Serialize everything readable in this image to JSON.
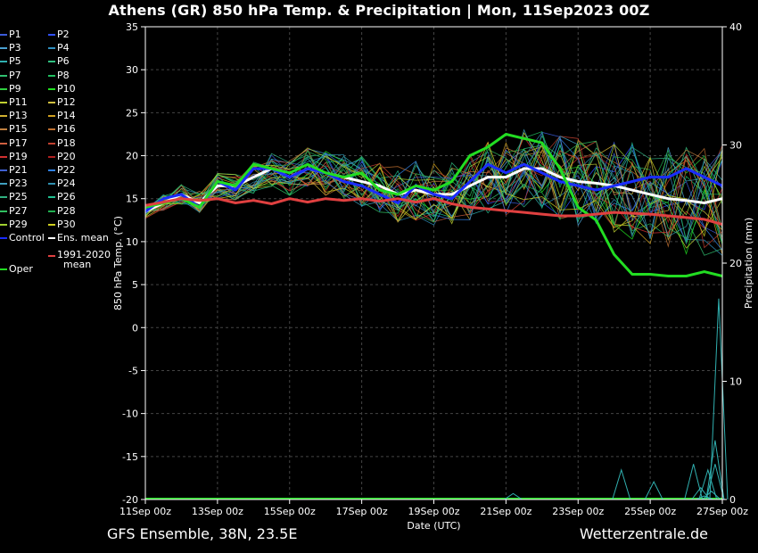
{
  "header": {
    "title": "Athens  (GR)  850 hPa Temp. & Precipitation | Mon, 11Sep2023 00Z"
  },
  "footer": {
    "left": "GFS Ensemble, 38N, 23.5E",
    "right": "Wetterzentrale.de"
  },
  "legend": [
    {
      "label": "P1",
      "color": "#3b5bd9"
    },
    {
      "label": "P2",
      "color": "#3050ff"
    },
    {
      "label": "P3",
      "color": "#4aa0d0"
    },
    {
      "label": "P4",
      "color": "#3090c0"
    },
    {
      "label": "P5",
      "color": "#30b0b0"
    },
    {
      "label": "P6",
      "color": "#30c080"
    },
    {
      "label": "P7",
      "color": "#30c070"
    },
    {
      "label": "P8",
      "color": "#20c060"
    },
    {
      "label": "P9",
      "color": "#30d040"
    },
    {
      "label": "P10",
      "color": "#20e020"
    },
    {
      "label": "P11",
      "color": "#c0d030"
    },
    {
      "label": "P12",
      "color": "#d0c040"
    },
    {
      "label": "P13",
      "color": "#d0b030"
    },
    {
      "label": "P14",
      "color": "#d0a020"
    },
    {
      "label": "P15",
      "color": "#c08040"
    },
    {
      "label": "P16",
      "color": "#c07030"
    },
    {
      "label": "P17",
      "color": "#d06040"
    },
    {
      "label": "P18",
      "color": "#c04030"
    },
    {
      "label": "P19",
      "color": "#d03030"
    },
    {
      "label": "P20",
      "color": "#b02020"
    },
    {
      "label": "P21",
      "color": "#4060d0"
    },
    {
      "label": "P22",
      "color": "#3080e0"
    },
    {
      "label": "P23",
      "color": "#40a0c0"
    },
    {
      "label": "P24",
      "color": "#3090b0"
    },
    {
      "label": "P25",
      "color": "#30b080"
    },
    {
      "label": "P26",
      "color": "#20c090"
    },
    {
      "label": "P27",
      "color": "#30c060"
    },
    {
      "label": "P28",
      "color": "#20b050"
    },
    {
      "label": "P29",
      "color": "#a0d030"
    },
    {
      "label": "P30",
      "color": "#d0d020"
    },
    {
      "label": "Control",
      "color": "#1a2cff"
    },
    {
      "label": "Ens. mean",
      "color": "#ffffff"
    },
    {
      "label": "Oper",
      "color": "#22dd22"
    },
    {
      "label": "1991-2020 mean",
      "color": "#e04040"
    }
  ],
  "chart_data": {
    "type": "line",
    "title": "Athens  (GR)  850 hPa Temp. & Precipitation | Mon, 11Sep2023 00Z",
    "xlabel": "Date (UTC)",
    "ylabel": "850 hPa Temp. (°C)",
    "y2label": "Precipitation (mm)",
    "ylim": [
      -20,
      35
    ],
    "y2lim": [
      0,
      40
    ],
    "x_ticks": [
      "11Sep 00z",
      "13Sep 00z",
      "15Sep 00z",
      "17Sep 00z",
      "19Sep 00z",
      "21Sep 00z",
      "23Sep 00z",
      "25Sep 00z",
      "27Sep 00z"
    ],
    "y_ticks": [
      35,
      30,
      25,
      20,
      15,
      10,
      5,
      0,
      -5,
      -10,
      -15,
      -20
    ],
    "y2_ticks": [
      40,
      30,
      20,
      10,
      0
    ],
    "grid": true,
    "legend_position": "left",
    "x_days": [
      0,
      0.5,
      1,
      1.5,
      2,
      2.5,
      3,
      3.5,
      4,
      4.5,
      5,
      5.5,
      6,
      6.5,
      7,
      7.5,
      8,
      8.5,
      9,
      9.5,
      10,
      10.5,
      11,
      11.5,
      12,
      12.5,
      13,
      13.5,
      14,
      14.5,
      15,
      15.5,
      16
    ],
    "series": [
      {
        "name": "Ens. mean",
        "color": "#ffffff",
        "width": 3,
        "values": [
          13.5,
          14.5,
          15.5,
          14.5,
          16.5,
          16.5,
          17.5,
          18.5,
          17.5,
          18.5,
          18,
          17.5,
          17,
          16.5,
          15.5,
          16,
          15.5,
          15.5,
          16.5,
          17.5,
          17.5,
          18.5,
          18.5,
          17.5,
          17,
          16.8,
          16.5,
          16,
          15.5,
          15,
          14.8,
          14.5,
          15
        ]
      },
      {
        "name": "Control",
        "color": "#1a2cff",
        "width": 3,
        "values": [
          13.5,
          15,
          15.5,
          14,
          17,
          16,
          18.5,
          18.5,
          17.5,
          18.5,
          18,
          17,
          16.5,
          15.5,
          14.5,
          16.5,
          15.5,
          15,
          17,
          19,
          18,
          19,
          18,
          17,
          16.5,
          16,
          16.5,
          17,
          17.5,
          17.5,
          18.5,
          17.5,
          16.5
        ]
      },
      {
        "name": "Oper",
        "color": "#22dd22",
        "width": 3,
        "values": [
          14,
          14.5,
          15,
          14,
          17,
          16.5,
          19,
          18.5,
          18,
          19,
          18,
          17.5,
          18,
          16,
          15.5,
          16.5,
          16,
          17,
          20,
          21,
          22.5,
          22,
          21.5,
          18.5,
          14,
          12.5,
          8.5,
          6.2,
          6.2,
          6,
          6,
          6.5,
          6
        ]
      },
      {
        "name": "1991-2020 mean",
        "color": "#e04040",
        "width": 3,
        "values": [
          14.2,
          14.6,
          15,
          14.8,
          15,
          14.5,
          14.8,
          14.4,
          15,
          14.6,
          15,
          14.8,
          15,
          14.7,
          15,
          14.6,
          15,
          14.4,
          14,
          13.8,
          13.6,
          13.4,
          13.2,
          13,
          13,
          13.2,
          13.4,
          13.3,
          13.2,
          13,
          12.8,
          12.6,
          12
        ]
      }
    ],
    "precip_peaks": [
      {
        "day": 10.2,
        "value": 0.5
      },
      {
        "day": 13.2,
        "value": 2.5
      },
      {
        "day": 14.1,
        "value": 1.5
      },
      {
        "day": 15.2,
        "value": 3.0
      },
      {
        "day": 15.6,
        "value": 2.5
      },
      {
        "day": 15.4,
        "value": 1.0
      },
      {
        "day": 15.8,
        "value": 5.0
      },
      {
        "day": 15.9,
        "value": 17.0
      },
      {
        "day": 15.8,
        "value": 3.0
      },
      {
        "day": 15.5,
        "value": 0.3
      },
      {
        "day": 15.7,
        "value": 0.7
      }
    ]
  }
}
